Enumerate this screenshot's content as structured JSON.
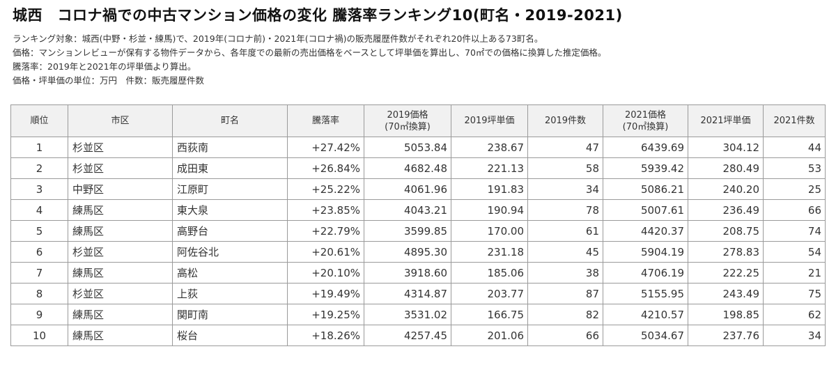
{
  "title": "城西　コロナ禍での中古マンション価格の変化 騰落率ランキング10(町名・2019-2021)",
  "notes": [
    "ランキング対象：城西(中野・杉並・練馬)で、2019年(コロナ前)・2021年(コロナ禍)の販売履歴件数がそれぞれ20件以上ある73町名。",
    "価格：マンションレビューが保有する物件データから、各年度での最新の売出価格をベースとして坪単価を算出し、70㎡での価格に換算した推定価格。",
    "騰落率：2019年と2021年の坪単価より算出。",
    "価格・坪単価の単位：万円　件数：販売履歴件数"
  ],
  "table": {
    "headers": [
      {
        "line1": "順位",
        "line2": ""
      },
      {
        "line1": "市区",
        "line2": ""
      },
      {
        "line1": "町名",
        "line2": ""
      },
      {
        "line1": "騰落率",
        "line2": ""
      },
      {
        "line1": "2019価格",
        "line2": "(70㎡換算)"
      },
      {
        "line1": "2019坪単価",
        "line2": ""
      },
      {
        "line1": "2019件数",
        "line2": ""
      },
      {
        "line1": "2021価格",
        "line2": "(70㎡換算)"
      },
      {
        "line1": "2021坪単価",
        "line2": ""
      },
      {
        "line1": "2021件数",
        "line2": ""
      }
    ],
    "rows": [
      [
        "1",
        "杉並区",
        "西荻南",
        "+27.42%",
        "5053.84",
        "238.67",
        "47",
        "6439.69",
        "304.12",
        "44"
      ],
      [
        "2",
        "杉並区",
        "成田東",
        "+26.84%",
        "4682.48",
        "221.13",
        "58",
        "5939.42",
        "280.49",
        "53"
      ],
      [
        "3",
        "中野区",
        "江原町",
        "+25.22%",
        "4061.96",
        "191.83",
        "34",
        "5086.21",
        "240.20",
        "25"
      ],
      [
        "4",
        "練馬区",
        "東大泉",
        "+23.85%",
        "4043.21",
        "190.94",
        "78",
        "5007.61",
        "236.49",
        "66"
      ],
      [
        "5",
        "練馬区",
        "高野台",
        "+22.79%",
        "3599.85",
        "170.00",
        "61",
        "4420.37",
        "208.75",
        "74"
      ],
      [
        "6",
        "杉並区",
        "阿佐谷北",
        "+20.61%",
        "4895.30",
        "231.18",
        "45",
        "5904.19",
        "278.83",
        "54"
      ],
      [
        "7",
        "練馬区",
        "高松",
        "+20.10%",
        "3918.60",
        "185.06",
        "38",
        "4706.19",
        "222.25",
        "21"
      ],
      [
        "8",
        "杉並区",
        "上荻",
        "+19.49%",
        "4314.87",
        "203.77",
        "87",
        "5155.95",
        "243.49",
        "75"
      ],
      [
        "9",
        "練馬区",
        "関町南",
        "+19.25%",
        "3531.02",
        "166.75",
        "82",
        "4210.57",
        "198.85",
        "62"
      ],
      [
        "10",
        "練馬区",
        "桜台",
        "+18.26%",
        "4257.45",
        "201.06",
        "66",
        "5034.67",
        "237.76",
        "34"
      ]
    ]
  }
}
